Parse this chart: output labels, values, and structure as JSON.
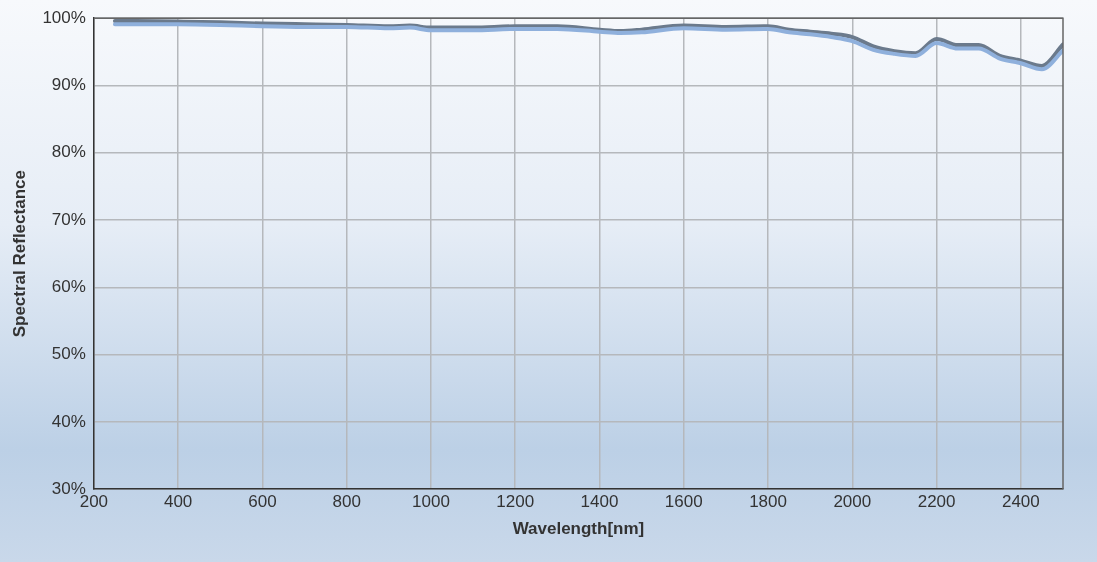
{
  "chart_data": {
    "type": "line",
    "xlabel": "Wavelength[nm]",
    "ylabel": "Spectral Reflectance",
    "xlim": [
      200,
      2500
    ],
    "xticks": [
      200,
      400,
      600,
      800,
      1000,
      1200,
      1400,
      1600,
      1800,
      2000,
      2200,
      2400
    ],
    "ylim": [
      30,
      100
    ],
    "yticks": [
      {
        "value": 30,
        "label": "30%"
      },
      {
        "value": 40,
        "label": "40%"
      },
      {
        "value": 50,
        "label": "50%"
      },
      {
        "value": 60,
        "label": "60%"
      },
      {
        "value": 70,
        "label": "70%"
      },
      {
        "value": 80,
        "label": "80%"
      },
      {
        "value": 90,
        "label": "90%"
      },
      {
        "value": 100,
        "label": "100%"
      }
    ],
    "grid": true,
    "legend": false,
    "marker": "none",
    "line_style": "solid",
    "series": [
      {
        "color": "#8fb0dc",
        "x": [
          250,
          400,
          500,
          600,
          700,
          800,
          900,
          950,
          1000,
          1100,
          1200,
          1300,
          1400,
          1450,
          1500,
          1600,
          1700,
          1800,
          1850,
          1900,
          1950,
          2000,
          2050,
          2100,
          2150,
          2200,
          2250,
          2300,
          2350,
          2400,
          2450,
          2500
        ],
        "values": [
          99.1,
          99.1,
          99.0,
          98.8,
          98.7,
          98.7,
          98.5,
          98.6,
          98.2,
          98.2,
          98.4,
          98.4,
          98.0,
          97.8,
          97.9,
          98.5,
          98.3,
          98.4,
          97.9,
          97.6,
          97.2,
          96.6,
          95.3,
          94.7,
          94.4,
          96.3,
          95.5,
          95.5,
          94.0,
          93.3,
          92.4,
          95.2
        ]
      },
      {
        "color": "#6b7a8c",
        "x": [
          250,
          400,
          500,
          600,
          700,
          800,
          900,
          950,
          1000,
          1100,
          1200,
          1300,
          1400,
          1450,
          1500,
          1600,
          1700,
          1800,
          1850,
          1900,
          1950,
          2000,
          2050,
          2100,
          2150,
          2200,
          2250,
          2300,
          2350,
          2400,
          2450,
          2500
        ],
        "values": [
          99.6,
          99.5,
          99.4,
          99.2,
          99.1,
          99.0,
          98.8,
          98.9,
          98.6,
          98.6,
          98.8,
          98.8,
          98.3,
          98.1,
          98.3,
          98.9,
          98.7,
          98.8,
          98.3,
          98.0,
          97.7,
          97.2,
          95.8,
          95.1,
          94.8,
          96.9,
          96.0,
          96.0,
          94.4,
          93.7,
          92.9,
          96.1
        ]
      }
    ]
  }
}
